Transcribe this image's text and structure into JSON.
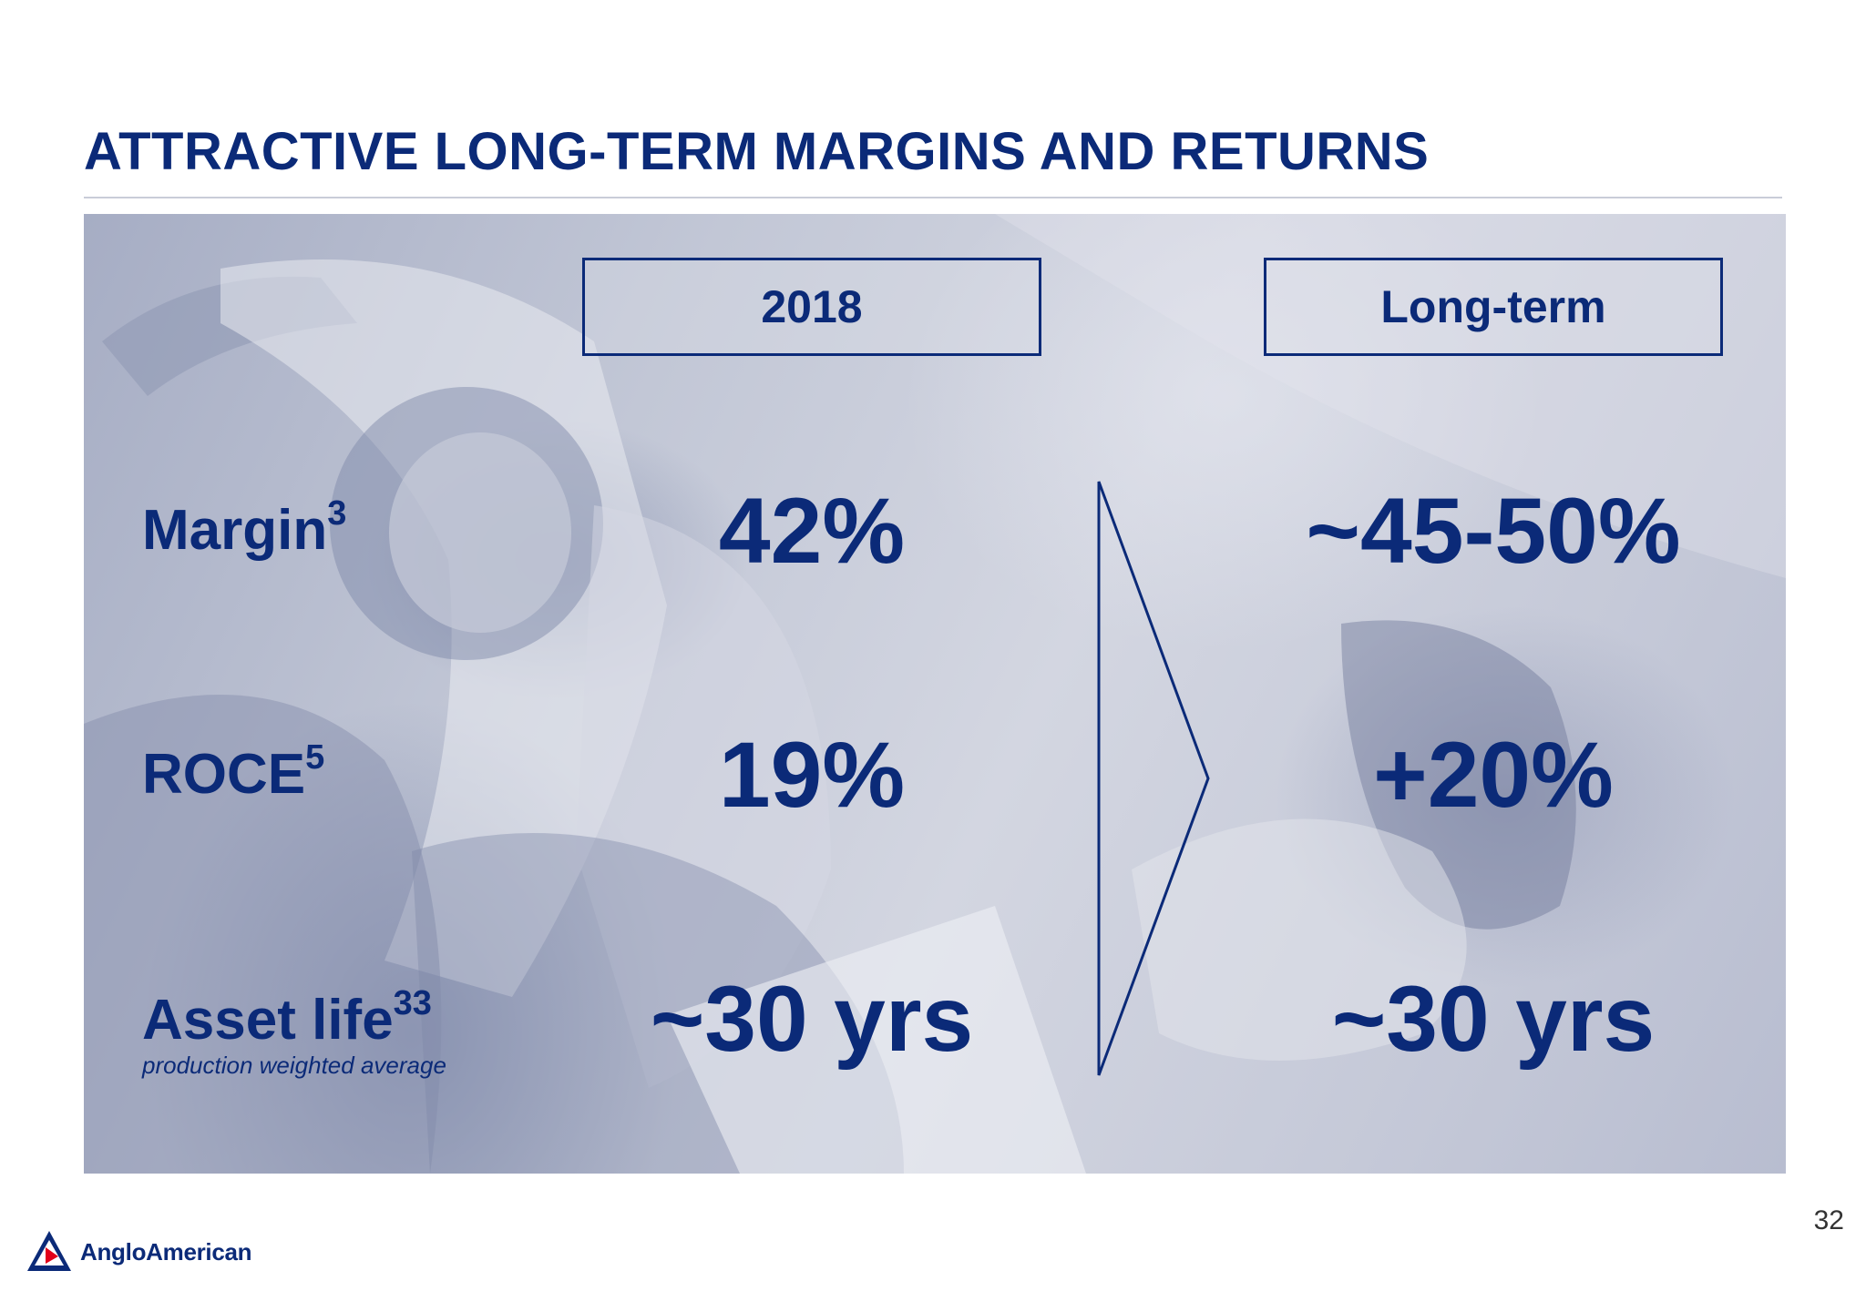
{
  "title": "ATTRACTIVE LONG-TERM MARGINS AND RETURNS",
  "columns": {
    "current": "2018",
    "future": "Long-term"
  },
  "rows": [
    {
      "label": "Margin",
      "sup": "3",
      "current": "42%",
      "future": "~45-50%"
    },
    {
      "label": "ROCE",
      "sup": "5",
      "current": "19%",
      "future": "+20%"
    },
    {
      "label": "Asset life",
      "sup": "33",
      "note": "production weighted average",
      "current": "~30 yrs",
      "future": "~30 yrs"
    }
  ],
  "page_number": "32",
  "logo": {
    "text": "AngloAmerican",
    "icon": "anglo-american-logo-icon"
  },
  "colors": {
    "brand_navy": "#0b2a78",
    "logo_red": "#e2001a"
  },
  "background_image": "worker-with-helmet-and-visor-icon"
}
